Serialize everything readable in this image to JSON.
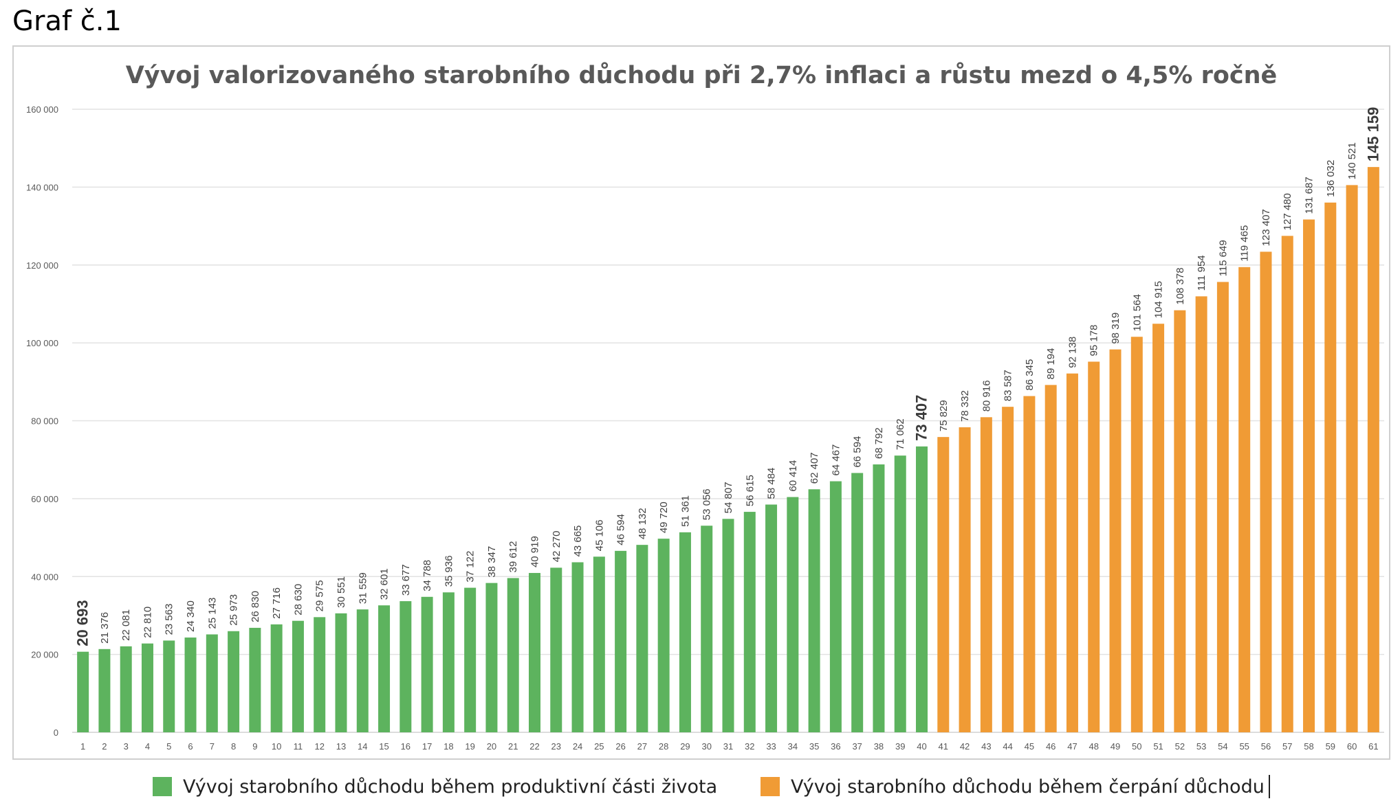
{
  "page_label": "Graf č.1",
  "colors": {
    "productive": "#5db35e",
    "retirement": "#f09b35",
    "text": "#595959",
    "grid": "#e2e2e2"
  },
  "legend": {
    "productive_label": "Vývoj starobního důchodu během produktivní části života",
    "retirement_label": "Vývoj starobního důchodu během čerpání důchodu"
  },
  "chart_data": {
    "type": "bar",
    "title": "Vývoj valorizovaného starobního důchodu při 2,7% inflaci a růstu mezd o 4,5% ročně",
    "xlabel": "",
    "ylabel": "",
    "ylim": [
      0,
      160000
    ],
    "yticks": [
      "0",
      "20 000",
      "40 000",
      "60 000",
      "80 000",
      "100 000",
      "120 000",
      "140 000",
      "160 000"
    ],
    "grid": true,
    "legend_position": "bottom",
    "categories": [
      "1",
      "2",
      "3",
      "4",
      "5",
      "6",
      "7",
      "8",
      "9",
      "10",
      "11",
      "12",
      "13",
      "14",
      "15",
      "16",
      "17",
      "18",
      "19",
      "20",
      "21",
      "22",
      "23",
      "24",
      "25",
      "26",
      "27",
      "28",
      "29",
      "30",
      "31",
      "32",
      "33",
      "34",
      "35",
      "36",
      "37",
      "38",
      "39",
      "40",
      "41",
      "42",
      "43",
      "44",
      "45",
      "46",
      "47",
      "48",
      "49",
      "50",
      "51",
      "52",
      "53",
      "54",
      "55",
      "56",
      "57",
      "58",
      "59",
      "60",
      "61"
    ],
    "values": [
      20693,
      21376,
      22081,
      22810,
      23563,
      24340,
      25143,
      25973,
      26830,
      27716,
      28630,
      29575,
      30551,
      31559,
      32601,
      33677,
      34788,
      35936,
      37122,
      38347,
      39612,
      40919,
      42270,
      43665,
      45106,
      46594,
      48132,
      49720,
      51361,
      53056,
      54807,
      56615,
      58484,
      60414,
      62407,
      64467,
      66594,
      68792,
      71062,
      73407,
      75829,
      78332,
      80916,
      83587,
      86345,
      89194,
      92138,
      95178,
      98319,
      101564,
      104915,
      108378,
      111954,
      115649,
      119465,
      123407,
      127480,
      131687,
      136032,
      140521,
      145159
    ],
    "value_labels": [
      "20 693",
      "21 376",
      "22 081",
      "22 810",
      "23 563",
      "24 340",
      "25 143",
      "25 973",
      "26 830",
      "27 716",
      "28 630",
      "29 575",
      "30 551",
      "31 559",
      "32 601",
      "33 677",
      "34 788",
      "35 936",
      "37 122",
      "38 347",
      "39 612",
      "40 919",
      "42 270",
      "43 665",
      "45 106",
      "46 594",
      "48 132",
      "49 720",
      "51 361",
      "53 056",
      "54 807",
      "56 615",
      "58 484",
      "60 414",
      "62 407",
      "64 467",
      "66 594",
      "68 792",
      "71 062",
      "73 407",
      "75 829",
      "78 332",
      "80 916",
      "83 587",
      "86 345",
      "89 194",
      "92 138",
      "95 178",
      "98 319",
      "101 564",
      "104 915",
      "108 378",
      "111 954",
      "115 649",
      "119 465",
      "123 407",
      "127 480",
      "131 687",
      "136 032",
      "140 521",
      "145 159"
    ],
    "productive_count": 40,
    "emphasized_labels": [
      "1",
      "40",
      "61"
    ]
  }
}
